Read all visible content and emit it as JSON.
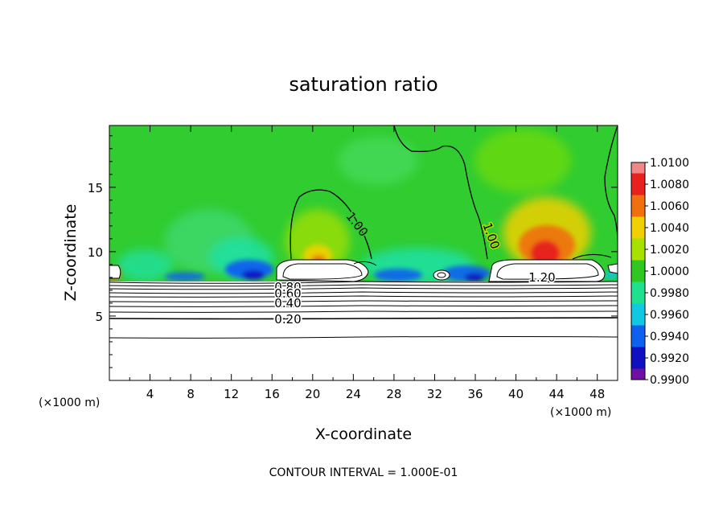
{
  "chart_data": {
    "type": "heatmap",
    "title": "saturation ratio",
    "xlabel": "X-coordinate",
    "ylabel": "Z-coordinate",
    "x_unit": "(×1000 m)",
    "x_unit_right": "(×1000 m)",
    "xlim": [
      0,
      50
    ],
    "ylim": [
      0,
      19.8
    ],
    "xticks": [
      4,
      8,
      12,
      16,
      20,
      24,
      28,
      32,
      36,
      40,
      44,
      48
    ],
    "yticks": [
      5,
      10,
      15
    ],
    "footer": "CONTOUR INTERVAL = 1.000E-01",
    "colorbar": {
      "levels": [
        "1.0100",
        "1.0080",
        "1.0060",
        "1.0040",
        "1.0020",
        "1.0000",
        "0.9980",
        "0.9960",
        "0.9940",
        "0.9920",
        "0.9900"
      ],
      "colors": [
        "#f08888",
        "#e82020",
        "#f07010",
        "#f0d000",
        "#a8e000",
        "#30c820",
        "#20e090",
        "#10c8e0",
        "#1060f0",
        "#1010c0",
        "#7010a0"
      ]
    },
    "contour_labels": [
      {
        "text": "1.00",
        "x": 23.8,
        "y": 12.4
      },
      {
        "text": "1.00",
        "x": 37.0,
        "y": 11.4
      },
      {
        "text": "1.20",
        "x": 42.5,
        "y": 8.0
      },
      {
        "text": "0.80",
        "x": 17.7,
        "y": 7.5
      },
      {
        "text": "0.60",
        "x": 17.7,
        "y": 6.8
      },
      {
        "text": "0.40",
        "x": 17.7,
        "y": 6.0
      },
      {
        "text": "0.20",
        "x": 17.7,
        "y": 4.8
      }
    ]
  }
}
